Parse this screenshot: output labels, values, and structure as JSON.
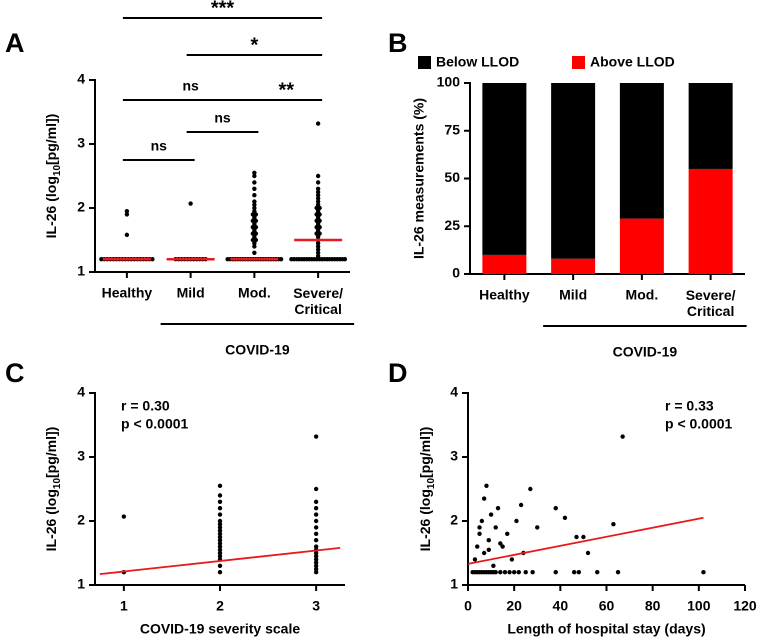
{
  "chart_data": [
    {
      "type": "strip",
      "panel": "A",
      "ylabel": [
        "IL-26 (log",
        "10",
        "[pg/ml])"
      ],
      "categories": [
        "Healthy",
        "Mild",
        "Mod.",
        "Severe/\nCritical"
      ],
      "points": [
        [
          1.2,
          1.2,
          1.2,
          1.2,
          1.2,
          1.2,
          1.2,
          1.2,
          1.2,
          1.2,
          1.2,
          1.2,
          1.2,
          1.2,
          1.2,
          1.2,
          1.2,
          1.2,
          1.58,
          1.9,
          1.95
        ],
        [
          1.2,
          1.2,
          1.2,
          1.2,
          1.2,
          1.2,
          1.2,
          1.2,
          1.2,
          1.2,
          1.2,
          2.07
        ],
        [
          1.2,
          1.2,
          1.2,
          1.2,
          1.2,
          1.2,
          1.2,
          1.2,
          1.2,
          1.2,
          1.2,
          1.2,
          1.2,
          1.2,
          1.2,
          1.2,
          1.2,
          1.2,
          1.2,
          1.2,
          1.2,
          1.2,
          1.3,
          1.4,
          1.45,
          1.5,
          1.55,
          1.6,
          1.65,
          1.7,
          1.75,
          1.8,
          1.85,
          1.9,
          1.95,
          2.0,
          2.05,
          2.1,
          2.2,
          2.3,
          2.4,
          2.5,
          2.55,
          1.5,
          1.6,
          1.7,
          1.8,
          1.9
        ],
        [
          1.2,
          1.2,
          1.2,
          1.2,
          1.2,
          1.2,
          1.2,
          1.2,
          1.2,
          1.2,
          1.2,
          1.2,
          1.2,
          1.2,
          1.2,
          1.2,
          1.2,
          1.2,
          1.2,
          1.2,
          1.2,
          1.2,
          1.25,
          1.3,
          1.35,
          1.4,
          1.45,
          1.5,
          1.55,
          1.6,
          1.65,
          1.7,
          1.75,
          1.8,
          1.85,
          1.9,
          1.95,
          2.0,
          2.05,
          2.1,
          2.15,
          2.2,
          2.25,
          2.3,
          2.4,
          2.5,
          3.32,
          1.6,
          1.7,
          1.8,
          1.9,
          2.0
        ]
      ],
      "medians": [
        1.2,
        1.2,
        1.2,
        1.5
      ],
      "point_color": "#000000",
      "median_color": "#e8191c",
      "ylim": [
        1,
        4
      ],
      "yticks": [
        1,
        2,
        3,
        4
      ],
      "comparisons": [
        {
          "from": "Healthy",
          "to": "Severe/\nCritical",
          "label": "***"
        },
        {
          "from": "Mild",
          "to": "Severe/\nCritical",
          "label": "*"
        },
        {
          "from": "Healthy",
          "to": "Mod.",
          "label": "ns"
        },
        {
          "from": "Mod.",
          "to": "Severe/\nCritical",
          "label": "**"
        },
        {
          "from": "Healthy",
          "to": "Mild",
          "label": "ns"
        },
        {
          "from": "Mild",
          "to": "Mod.",
          "label": "ns"
        }
      ],
      "group": {
        "label": "COVID-19",
        "from": "Mild",
        "to": "Severe/\nCritical"
      }
    },
    {
      "type": "stacked_bar",
      "panel": "B",
      "ylabel": "IL-26 measurements (%)",
      "categories": [
        "Healthy",
        "Mild",
        "Mod.",
        "Severe/\nCritical"
      ],
      "series": [
        {
          "name": "Below LLOD",
          "color": "#000000",
          "values": [
            90,
            92,
            71,
            45
          ]
        },
        {
          "name": "Above LLOD",
          "color": "#ff0000",
          "values": [
            10,
            8,
            29,
            55
          ]
        }
      ],
      "legend": "top",
      "ylim": [
        0,
        100
      ],
      "yticks": [
        0,
        25,
        50,
        75,
        100
      ],
      "group": {
        "label": "COVID-19",
        "from": "Mild",
        "to": "Severe/\nCritical"
      }
    },
    {
      "type": "scatter",
      "panel": "C",
      "ylabel": [
        "IL-26 (log",
        "10",
        "[pg/ml])"
      ],
      "xlabel": "COVID-19 severity scale",
      "x": [
        1,
        1,
        2,
        2,
        2,
        2,
        2,
        2,
        2,
        2,
        2,
        2,
        2,
        2,
        2,
        2,
        2,
        2,
        2,
        2,
        2,
        2,
        3,
        3,
        3,
        3,
        3,
        3,
        3,
        3,
        3,
        3,
        3,
        3,
        3,
        3,
        3,
        3,
        3,
        3
      ],
      "y": [
        2.07,
        1.2,
        1.2,
        1.3,
        1.4,
        1.5,
        1.6,
        1.7,
        1.8,
        1.9,
        2.0,
        2.1,
        2.2,
        2.3,
        2.4,
        2.55,
        1.45,
        1.55,
        1.65,
        1.75,
        1.85,
        1.95,
        1.2,
        1.3,
        1.4,
        1.5,
        1.6,
        1.7,
        1.8,
        1.9,
        2.0,
        2.1,
        2.2,
        2.3,
        2.5,
        3.32,
        1.25,
        1.35,
        1.45,
        1.55
      ],
      "point_color": "#000000",
      "fit": {
        "x": [
          0.75,
          3.25
        ],
        "y": [
          1.17,
          1.58
        ],
        "color": "#e8191c"
      },
      "annotations": [
        "r = 0.30",
        "p < 0.0001"
      ],
      "annotation_position": "top-left",
      "xlim": [
        0.7,
        3.3
      ],
      "xticks": [
        1,
        2,
        3
      ],
      "ylim": [
        1,
        4
      ],
      "yticks": [
        1,
        2,
        3,
        4
      ]
    },
    {
      "type": "scatter",
      "panel": "D",
      "ylabel": [
        "IL-26 (log",
        "10",
        "[pg/ml])"
      ],
      "xlabel": "Length of hospital stay (days)",
      "x": [
        2,
        3,
        4,
        5,
        6,
        7,
        8,
        9,
        10,
        11,
        12,
        14,
        16,
        18,
        20,
        22,
        25,
        28,
        38,
        46,
        48,
        56,
        65,
        102,
        3,
        4,
        5,
        6,
        7,
        8,
        9,
        10,
        11,
        12,
        13,
        15,
        17,
        19,
        21,
        23,
        24,
        27,
        30,
        38,
        42,
        47,
        50,
        52,
        63,
        67,
        7,
        5,
        9,
        14
      ],
      "y": [
        1.2,
        1.2,
        1.2,
        1.2,
        1.2,
        1.2,
        1.2,
        1.2,
        1.2,
        1.2,
        1.2,
        1.2,
        1.2,
        1.2,
        1.2,
        1.2,
        1.2,
        1.2,
        1.2,
        1.2,
        1.2,
        1.2,
        1.2,
        1.2,
        1.4,
        1.6,
        1.8,
        2.0,
        1.5,
        2.55,
        1.7,
        2.1,
        1.3,
        1.9,
        2.2,
        1.6,
        1.8,
        1.4,
        2.0,
        2.25,
        1.5,
        2.5,
        1.9,
        2.2,
        2.05,
        1.75,
        1.75,
        1.5,
        1.95,
        3.32,
        2.35,
        1.9,
        1.55,
        1.65
      ],
      "point_color": "#000000",
      "fit": {
        "x": [
          0,
          102
        ],
        "y": [
          1.33,
          2.05
        ],
        "color": "#e8191c"
      },
      "annotations": [
        "r = 0.33",
        "p < 0.0001"
      ],
      "annotation_position": "top-right",
      "xlim": [
        0,
        120
      ],
      "xticks": [
        0,
        20,
        40,
        60,
        80,
        100,
        120
      ],
      "ylim": [
        1,
        4
      ],
      "yticks": [
        1,
        2,
        3,
        4
      ]
    }
  ]
}
